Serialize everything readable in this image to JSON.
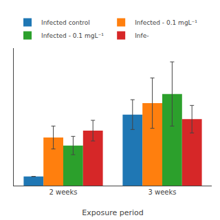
{
  "chart_data": {
    "type": "bar",
    "categories": [
      "2 weeks",
      "3 weeks"
    ],
    "series": [
      {
        "name": "Infected control",
        "values": [
          0.08,
          0.62
        ],
        "errors": [
          0.0,
          0.13
        ]
      },
      {
        "name": "Infected - 0.1 mgL⁻¹",
        "values": [
          0.42,
          0.72
        ],
        "errors": [
          0.1,
          0.22
        ]
      },
      {
        "name": "Infected - 0.1 mgL⁻¹",
        "values": [
          0.35,
          0.8
        ],
        "errors": [
          0.08,
          0.28
        ]
      },
      {
        "name": "Infe-",
        "values": [
          0.48,
          0.58
        ],
        "errors": [
          0.09,
          0.12
        ]
      }
    ],
    "xlabel": "Exposure period",
    "ylim": [
      0,
      1.2
    ],
    "yticks": [],
    "grid": false,
    "legend": "upper left",
    "tick_labels": "x"
  }
}
